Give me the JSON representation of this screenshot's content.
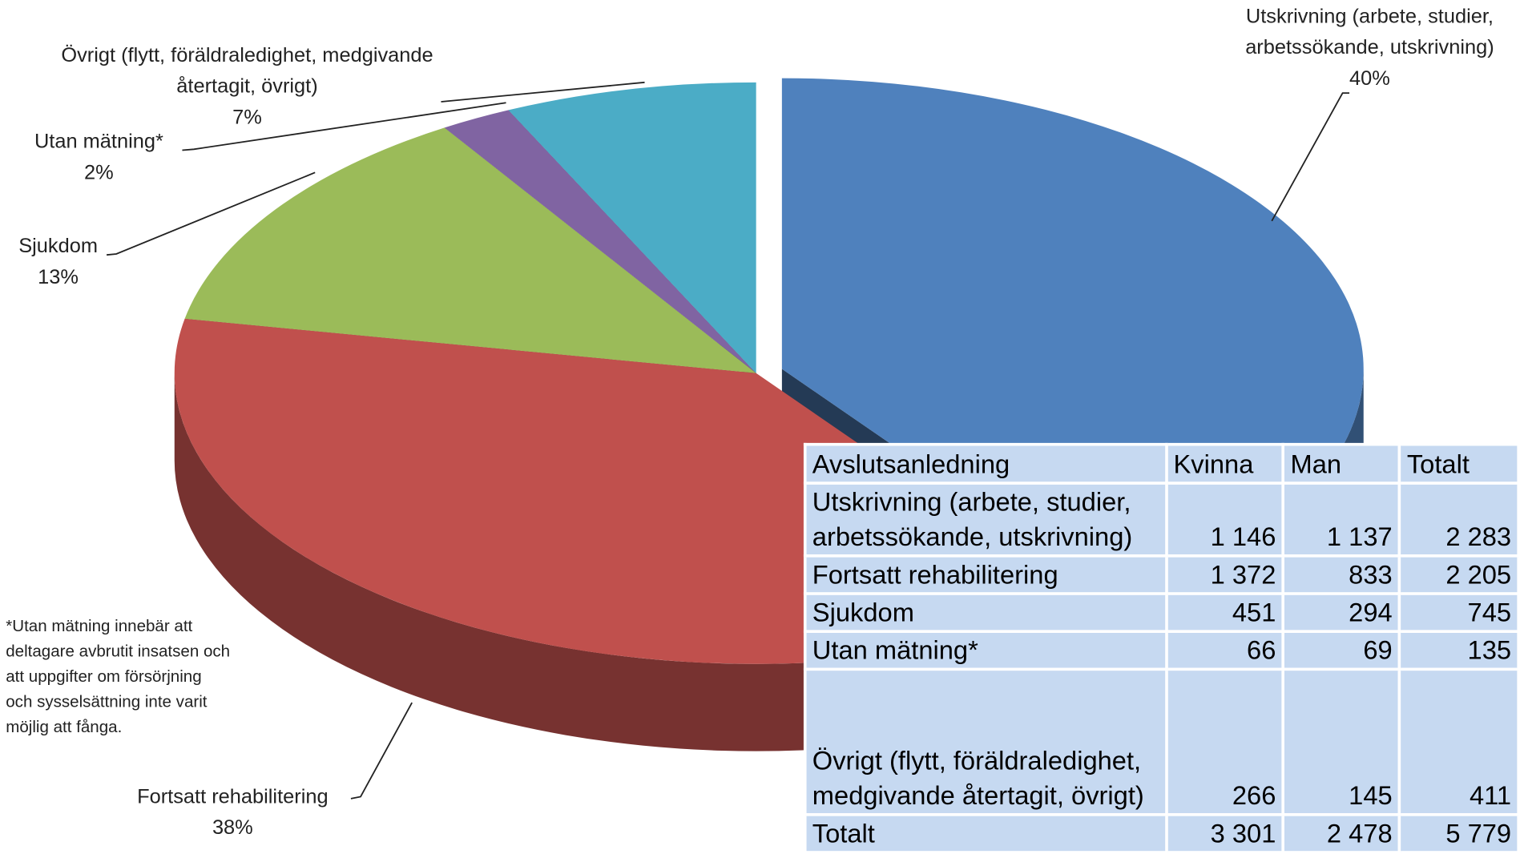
{
  "chart_data": {
    "type": "pie3d",
    "categories": [
      [
        "Utskrivning (arbete, studier,",
        "arbetssökande, utskrivning)"
      ],
      [
        "Fortsatt rehabilitering"
      ],
      [
        "Sjukdom"
      ],
      [
        "Utan mätning*"
      ],
      [
        "Övrigt (flytt, föräldraledighet, medgivande",
        "återtagit, övrigt)"
      ]
    ],
    "values": [
      40,
      38,
      13,
      2,
      7
    ],
    "value_labels": [
      "40%",
      "38%",
      "13%",
      "2%",
      "7%"
    ],
    "colors": [
      "#4f81bd",
      "#c0504d",
      "#9bbb59",
      "#8064a2",
      "#4bacc6"
    ],
    "exploded": 0
  },
  "footnote": [
    "*Utan mätning innebär att",
    "deltagare  avbrutit insatsen och",
    "att uppgifter om försörjning",
    "och sysselsättning inte varit",
    "möjlig att fånga."
  ],
  "table": {
    "header": [
      "Avslutsanledning",
      "Kvinna",
      "Man",
      "Totalt"
    ],
    "rows": [
      [
        "Utskrivning (arbete, studier, arbetssökande, utskrivning)",
        "1 146",
        "1 137",
        "2 283"
      ],
      [
        "Fortsatt rehabilitering",
        "1 372",
        "833",
        "2 205"
      ],
      [
        "Sjukdom",
        "451",
        "294",
        "745"
      ],
      [
        "Utan mätning*",
        "66",
        "69",
        "135"
      ],
      [
        "Övrigt (flytt, föräldraledighet, medgivande återtagit, övrigt)",
        "266",
        "145",
        "411"
      ],
      [
        "Totalt",
        "3 301",
        "2 478",
        "5 779"
      ]
    ]
  }
}
